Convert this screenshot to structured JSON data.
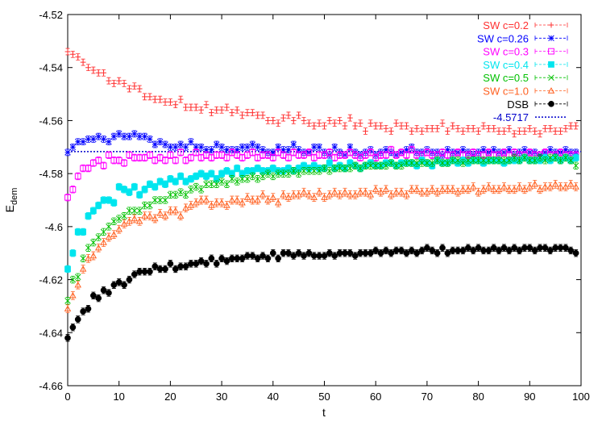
{
  "chart_data": {
    "type": "scatter",
    "title": "",
    "xlabel": "t",
    "ylabel": "E",
    "ylabel_subscript": "dem",
    "xlim": [
      0,
      100
    ],
    "ylim": [
      -4.66,
      -4.52
    ],
    "xticks": [
      0,
      10,
      20,
      30,
      40,
      50,
      60,
      70,
      80,
      90,
      100
    ],
    "yticks": [
      -4.66,
      -4.64,
      -4.62,
      -4.6,
      -4.58,
      -4.56,
      -4.54,
      -4.52
    ],
    "ytick_labels": [
      "-4.66",
      "-4.64",
      "-4.62",
      "-4.6",
      "-4.58",
      "-4.56",
      "-4.54",
      "-4.52"
    ],
    "xtick_labels": [
      "0",
      "10",
      "20",
      "30",
      "40",
      "50",
      "60",
      "70",
      "80",
      "90",
      "100"
    ],
    "legend_position": "top-right",
    "grid": false,
    "errorbars": true,
    "hline": {
      "name": "-4.5717",
      "value": -4.5717,
      "color": "#0000cc"
    },
    "series": [
      {
        "name": "SW c=0.2",
        "color": "#ff3030",
        "marker": "plus",
        "err": 0.0012,
        "values": [
          -4.534,
          -4.535,
          -4.536,
          -4.538,
          -4.54,
          -4.541,
          -4.542,
          -4.542,
          -4.545,
          -4.546,
          -4.545,
          -4.546,
          -4.548,
          -4.547,
          -4.548,
          -4.551,
          -4.551,
          -4.552,
          -4.552,
          -4.553,
          -4.553,
          -4.554,
          -4.552,
          -4.555,
          -4.555,
          -4.555,
          -4.556,
          -4.554,
          -4.557,
          -4.556,
          -4.556,
          -4.555,
          -4.557,
          -4.556,
          -4.558,
          -4.557,
          -4.557,
          -4.558,
          -4.558,
          -4.56,
          -4.56,
          -4.561,
          -4.559,
          -4.558,
          -4.56,
          -4.558,
          -4.56,
          -4.561,
          -4.562,
          -4.561,
          -4.562,
          -4.56,
          -4.561,
          -4.56,
          -4.562,
          -4.559,
          -4.562,
          -4.561,
          -4.564,
          -4.561,
          -4.562,
          -4.562,
          -4.563,
          -4.564,
          -4.561,
          -4.562,
          -4.562,
          -4.564,
          -4.563,
          -4.564,
          -4.563,
          -4.563,
          -4.563,
          -4.561,
          -4.564,
          -4.562,
          -4.563,
          -4.564,
          -4.563,
          -4.563,
          -4.564,
          -4.562,
          -4.563,
          -4.563,
          -4.564,
          -4.564,
          -4.563,
          -4.565,
          -4.564,
          -4.564,
          -4.563,
          -4.564,
          -4.565,
          -4.563,
          -4.563,
          -4.564,
          -4.564,
          -4.563,
          -4.562,
          -4.562
        ]
      },
      {
        "name": "SW c=0.26",
        "color": "#0000ff",
        "marker": "star",
        "err": 0.0012,
        "values": [
          -4.572,
          -4.57,
          -4.568,
          -4.568,
          -4.567,
          -4.567,
          -4.566,
          -4.567,
          -4.568,
          -4.566,
          -4.565,
          -4.566,
          -4.566,
          -4.565,
          -4.566,
          -4.566,
          -4.567,
          -4.569,
          -4.568,
          -4.569,
          -4.57,
          -4.57,
          -4.569,
          -4.57,
          -4.568,
          -4.57,
          -4.57,
          -4.571,
          -4.571,
          -4.569,
          -4.57,
          -4.571,
          -4.571,
          -4.571,
          -4.57,
          -4.57,
          -4.569,
          -4.57,
          -4.571,
          -4.572,
          -4.572,
          -4.57,
          -4.571,
          -4.571,
          -4.569,
          -4.571,
          -4.572,
          -4.572,
          -4.57,
          -4.57,
          -4.572,
          -4.573,
          -4.57,
          -4.572,
          -4.573,
          -4.57,
          -4.572,
          -4.573,
          -4.572,
          -4.571,
          -4.573,
          -4.572,
          -4.571,
          -4.572,
          -4.573,
          -4.572,
          -4.571,
          -4.57,
          -4.572,
          -4.572,
          -4.571,
          -4.572,
          -4.572,
          -4.573,
          -4.571,
          -4.572,
          -4.572,
          -4.571,
          -4.572,
          -4.573,
          -4.572,
          -4.571,
          -4.572,
          -4.571,
          -4.572,
          -4.572,
          -4.571,
          -4.573,
          -4.572,
          -4.571,
          -4.572,
          -4.572,
          -4.573,
          -4.572,
          -4.571,
          -4.572,
          -4.572,
          -4.571,
          -4.572,
          -4.572
        ]
      },
      {
        "name": "SW c=0.3",
        "color": "#ff00ff",
        "marker": "open-square",
        "err": 0.0013,
        "values": [
          -4.589,
          -4.586,
          -4.581,
          -4.578,
          -4.578,
          -4.576,
          -4.575,
          -4.577,
          -4.573,
          -4.575,
          -4.575,
          -4.576,
          -4.573,
          -4.574,
          -4.574,
          -4.574,
          -4.573,
          -4.575,
          -4.574,
          -4.575,
          -4.573,
          -4.575,
          -4.572,
          -4.575,
          -4.574,
          -4.572,
          -4.574,
          -4.573,
          -4.574,
          -4.573,
          -4.573,
          -4.574,
          -4.572,
          -4.573,
          -4.574,
          -4.573,
          -4.572,
          -4.574,
          -4.573,
          -4.573,
          -4.574,
          -4.572,
          -4.573,
          -4.574,
          -4.572,
          -4.573,
          -4.573,
          -4.572,
          -4.574,
          -4.573,
          -4.573,
          -4.572,
          -4.574,
          -4.573,
          -4.573,
          -4.572,
          -4.573,
          -4.574,
          -4.573,
          -4.572,
          -4.574,
          -4.573,
          -4.573,
          -4.571,
          -4.573,
          -4.572,
          -4.573,
          -4.571,
          -4.573,
          -4.573,
          -4.572,
          -4.573,
          -4.573,
          -4.572,
          -4.573,
          -4.573,
          -4.572,
          -4.573,
          -4.573,
          -4.572,
          -4.573,
          -4.573,
          -4.572,
          -4.573,
          -4.573,
          -4.572,
          -4.573,
          -4.572,
          -4.573,
          -4.573,
          -4.572,
          -4.573,
          -4.573,
          -4.572,
          -4.573,
          -4.573,
          -4.572,
          -4.573,
          -4.573,
          -4.573
        ]
      },
      {
        "name": "SW c=0.4",
        "color": "#00e5ee",
        "marker": "filled-square",
        "err": 0.0013,
        "values": [
          -4.616,
          -4.61,
          -4.602,
          -4.602,
          -4.596,
          -4.594,
          -4.592,
          -4.59,
          -4.59,
          -4.591,
          -4.585,
          -4.586,
          -4.587,
          -4.585,
          -4.588,
          -4.586,
          -4.584,
          -4.585,
          -4.583,
          -4.584,
          -4.582,
          -4.583,
          -4.581,
          -4.583,
          -4.582,
          -4.581,
          -4.58,
          -4.581,
          -4.58,
          -4.582,
          -4.58,
          -4.579,
          -4.58,
          -4.578,
          -4.58,
          -4.579,
          -4.579,
          -4.578,
          -4.579,
          -4.579,
          -4.578,
          -4.579,
          -4.579,
          -4.578,
          -4.579,
          -4.578,
          -4.577,
          -4.578,
          -4.577,
          -4.578,
          -4.578,
          -4.576,
          -4.578,
          -4.577,
          -4.578,
          -4.576,
          -4.577,
          -4.578,
          -4.577,
          -4.576,
          -4.577,
          -4.577,
          -4.576,
          -4.576,
          -4.577,
          -4.576,
          -4.576,
          -4.576,
          -4.577,
          -4.575,
          -4.576,
          -4.577,
          -4.575,
          -4.576,
          -4.576,
          -4.575,
          -4.576,
          -4.575,
          -4.576,
          -4.575,
          -4.575,
          -4.576,
          -4.575,
          -4.575,
          -4.575,
          -4.576,
          -4.575,
          -4.575,
          -4.575,
          -4.574,
          -4.575,
          -4.575,
          -4.575,
          -4.574,
          -4.575,
          -4.574,
          -4.575,
          -4.574,
          -4.575,
          -4.574
        ]
      },
      {
        "name": "SW c=0.5",
        "color": "#00c000",
        "marker": "cross",
        "err": 0.0013,
        "values": [
          -4.628,
          -4.62,
          -4.619,
          -4.612,
          -4.608,
          -4.606,
          -4.604,
          -4.602,
          -4.6,
          -4.598,
          -4.597,
          -4.596,
          -4.594,
          -4.594,
          -4.594,
          -4.592,
          -4.592,
          -4.59,
          -4.59,
          -4.59,
          -4.588,
          -4.588,
          -4.587,
          -4.588,
          -4.586,
          -4.585,
          -4.586,
          -4.584,
          -4.584,
          -4.584,
          -4.583,
          -4.584,
          -4.582,
          -4.583,
          -4.582,
          -4.582,
          -4.581,
          -4.582,
          -4.581,
          -4.58,
          -4.581,
          -4.58,
          -4.58,
          -4.58,
          -4.579,
          -4.58,
          -4.579,
          -4.579,
          -4.579,
          -4.579,
          -4.578,
          -4.579,
          -4.578,
          -4.578,
          -4.578,
          -4.578,
          -4.577,
          -4.578,
          -4.577,
          -4.577,
          -4.577,
          -4.577,
          -4.577,
          -4.576,
          -4.577,
          -4.577,
          -4.576,
          -4.576,
          -4.576,
          -4.576,
          -4.576,
          -4.576,
          -4.575,
          -4.576,
          -4.576,
          -4.575,
          -4.575,
          -4.576,
          -4.575,
          -4.575,
          -4.575,
          -4.575,
          -4.575,
          -4.575,
          -4.575,
          -4.575,
          -4.575,
          -4.574,
          -4.575,
          -4.574,
          -4.575,
          -4.575,
          -4.574,
          -4.575,
          -4.574,
          -4.574,
          -4.575,
          -4.574,
          -4.575,
          -4.577
        ]
      },
      {
        "name": "SW c=1.0",
        "color": "#ff6020",
        "marker": "open-triangle",
        "err": 0.0015,
        "values": [
          -4.631,
          -4.626,
          -4.622,
          -4.616,
          -4.612,
          -4.611,
          -4.608,
          -4.606,
          -4.604,
          -4.603,
          -4.601,
          -4.599,
          -4.598,
          -4.597,
          -4.598,
          -4.596,
          -4.596,
          -4.597,
          -4.595,
          -4.596,
          -4.594,
          -4.594,
          -4.596,
          -4.593,
          -4.592,
          -4.591,
          -4.59,
          -4.59,
          -4.592,
          -4.591,
          -4.591,
          -4.592,
          -4.59,
          -4.59,
          -4.591,
          -4.589,
          -4.59,
          -4.59,
          -4.588,
          -4.59,
          -4.589,
          -4.591,
          -4.588,
          -4.589,
          -4.588,
          -4.588,
          -4.587,
          -4.588,
          -4.589,
          -4.587,
          -4.589,
          -4.588,
          -4.587,
          -4.588,
          -4.587,
          -4.588,
          -4.588,
          -4.587,
          -4.587,
          -4.588,
          -4.586,
          -4.587,
          -4.586,
          -4.588,
          -4.587,
          -4.587,
          -4.588,
          -4.586,
          -4.586,
          -4.587,
          -4.587,
          -4.586,
          -4.587,
          -4.586,
          -4.586,
          -4.586,
          -4.587,
          -4.586,
          -4.586,
          -4.585,
          -4.587,
          -4.586,
          -4.585,
          -4.586,
          -4.586,
          -4.585,
          -4.586,
          -4.586,
          -4.585,
          -4.586,
          -4.585,
          -4.584,
          -4.586,
          -4.585,
          -4.585,
          -4.584,
          -4.585,
          -4.585,
          -4.584,
          -4.585
        ]
      },
      {
        "name": "DSB",
        "color": "#000000",
        "marker": "filled-circle",
        "err": 0.0013,
        "values": [
          -4.642,
          -4.638,
          -4.635,
          -4.632,
          -4.631,
          -4.626,
          -4.627,
          -4.624,
          -4.625,
          -4.622,
          -4.621,
          -4.622,
          -4.62,
          -4.618,
          -4.617,
          -4.617,
          -4.617,
          -4.615,
          -4.616,
          -4.616,
          -4.614,
          -4.616,
          -4.615,
          -4.615,
          -4.614,
          -4.614,
          -4.613,
          -4.614,
          -4.612,
          -4.614,
          -4.612,
          -4.613,
          -4.612,
          -4.612,
          -4.612,
          -4.611,
          -4.611,
          -4.612,
          -4.611,
          -4.612,
          -4.61,
          -4.612,
          -4.61,
          -4.61,
          -4.611,
          -4.61,
          -4.611,
          -4.61,
          -4.611,
          -4.611,
          -4.611,
          -4.61,
          -4.611,
          -4.61,
          -4.61,
          -4.61,
          -4.611,
          -4.61,
          -4.61,
          -4.61,
          -4.609,
          -4.61,
          -4.609,
          -4.61,
          -4.609,
          -4.609,
          -4.61,
          -4.609,
          -4.61,
          -4.609,
          -4.608,
          -4.609,
          -4.61,
          -4.608,
          -4.61,
          -4.609,
          -4.609,
          -4.609,
          -4.608,
          -4.609,
          -4.608,
          -4.609,
          -4.609,
          -4.608,
          -4.609,
          -4.608,
          -4.609,
          -4.608,
          -4.609,
          -4.608,
          -4.608,
          -4.609,
          -4.608,
          -4.608,
          -4.609,
          -4.608,
          -4.608,
          -4.608,
          -4.609,
          -4.61
        ]
      }
    ]
  }
}
